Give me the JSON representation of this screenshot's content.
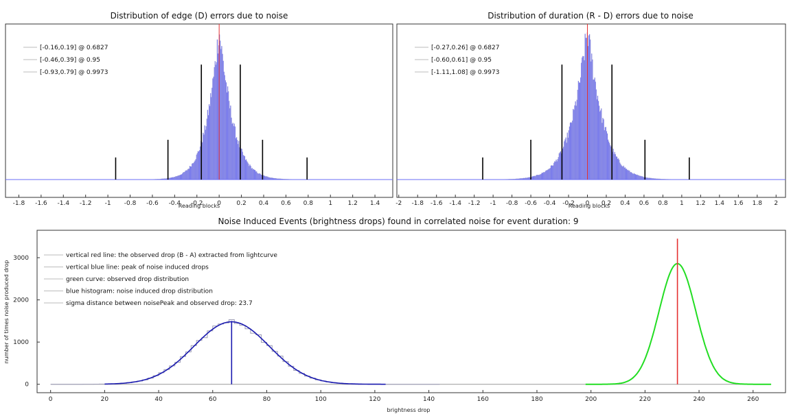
{
  "colors": {
    "hist_fill": "#6a6cf5",
    "hist_edge": "#b8b8c8",
    "red_line": "#e53030",
    "black_line": "#000000",
    "green_curve": "#22dd22",
    "blue_curve": "#1a1ab0",
    "legend_line": "#bbbbbb",
    "frame": "#333333"
  },
  "chart_data": [
    {
      "type": "bar",
      "title": "Distribution of edge (D) errors due to noise",
      "xlabel": "Reading blocks",
      "ylabel": "",
      "xlim": [
        -1.92,
        1.56
      ],
      "x_ticks": [
        -1.8,
        -1.6,
        -1.4,
        -1.2,
        -1,
        -0.8,
        -0.6,
        -0.4,
        -0.2,
        0,
        0.2,
        0.4,
        0.6,
        0.8,
        1,
        1.2,
        1.4
      ],
      "x_tick_labels": [
        "-1.8",
        "-1.6",
        "-1.4",
        "-1.2",
        "-1",
        "-0.8",
        "-0.6",
        "-0.4",
        "-0.2",
        "0",
        "0.2",
        "0.4",
        "0.6",
        "0.8",
        "1",
        "1.2",
        "1.4"
      ],
      "distribution": {
        "center": 0.0,
        "scale_left": 0.115,
        "scale_right": 0.125,
        "shape": "laplace-like",
        "support": [
          -1.3,
          1.5
        ]
      },
      "red_line_x": 0.0,
      "interval_markers": [
        {
          "low": -0.16,
          "high": 0.19,
          "height_frac": 0.78
        },
        {
          "low": -0.46,
          "high": 0.39,
          "height_frac": 0.27
        },
        {
          "low": -0.93,
          "high": 0.79,
          "height_frac": 0.15
        }
      ],
      "legend": {
        "placement": "top-left",
        "entries": [
          "[-0.16,0.19] @ 0.6827",
          "[-0.46,0.39] @ 0.95",
          "[-0.93,0.79] @ 0.9973"
        ]
      },
      "grid": false
    },
    {
      "type": "bar",
      "title": "Distribution of duration (R - D) errors due to noise",
      "xlabel": "Reading blocks",
      "ylabel": "",
      "xlim": [
        -2.02,
        2.1
      ],
      "x_ticks": [
        -2,
        -1.8,
        -1.6,
        -1.4,
        -1.2,
        -1,
        -0.8,
        -0.6,
        -0.4,
        -0.2,
        0,
        0.2,
        0.4,
        0.6,
        0.8,
        1,
        1.2,
        1.4,
        1.6,
        1.8,
        2
      ],
      "x_tick_labels": [
        "-2",
        "-1.8",
        "-1.6",
        "-1.4",
        "-1.2",
        "-1",
        "-0.8",
        "-0.6",
        "-0.4",
        "-0.2",
        "0",
        "0.2",
        "0.4",
        "0.6",
        "0.8",
        "1",
        "1.2",
        "1.4",
        "1.6",
        "1.8",
        "2"
      ],
      "distribution": {
        "center": 0.0,
        "scale_left": 0.17,
        "scale_right": 0.17,
        "shape": "laplace-like",
        "support": [
          -1.6,
          1.7
        ]
      },
      "red_line_x": 0.0,
      "interval_markers": [
        {
          "low": -0.27,
          "high": 0.26,
          "height_frac": 0.78
        },
        {
          "low": -0.6,
          "high": 0.61,
          "height_frac": 0.27
        },
        {
          "low": -1.11,
          "high": 1.08,
          "height_frac": 0.15
        }
      ],
      "legend": {
        "placement": "top-left",
        "entries": [
          "[-0.27,0.26] @ 0.6827",
          "[-0.60,0.61] @ 0.95",
          "[-1.11,1.08] @ 0.9973"
        ]
      },
      "grid": false
    },
    {
      "type": "line",
      "title": "Noise Induced Events (brightness drops) found in correlated noise for event duration: 9",
      "xlabel": "brightness drop",
      "ylabel": "number of times noise produced drop",
      "xlim": [
        -5,
        272
      ],
      "ylim": [
        -200,
        3650
      ],
      "x_ticks": [
        0,
        20,
        40,
        60,
        80,
        100,
        120,
        140,
        160,
        180,
        200,
        220,
        240,
        260
      ],
      "x_tick_labels": [
        "0",
        "20",
        "40",
        "60",
        "80",
        "100",
        "120",
        "140",
        "160",
        "180",
        "200",
        "220",
        "240",
        "260"
      ],
      "y_ticks": [
        0,
        1000,
        2000,
        3000
      ],
      "y_tick_labels": [
        "0",
        "1000",
        "2000",
        "3000"
      ],
      "series": [
        {
          "kind": "gaussian",
          "role": "blue histogram",
          "mean": 67,
          "sigma": 14,
          "peak": 1480,
          "x_range": [
            0,
            144
          ]
        },
        {
          "kind": "gaussian",
          "role": "blue fit",
          "mean": 67,
          "sigma": 14,
          "peak": 1480,
          "x_range": [
            20,
            124
          ]
        },
        {
          "kind": "gaussian",
          "role": "green curve",
          "mean": 232,
          "sigma": 6.8,
          "peak": 2860,
          "x_range": [
            198,
            267
          ]
        }
      ],
      "red_line": {
        "x": 232,
        "top": 3450
      },
      "blue_line": {
        "x": 67,
        "top": 1500
      },
      "legend": {
        "placement": "top-left",
        "entries": [
          "vertical red line: the observed drop (B - A) extracted from lightcurve",
          "vertical blue line: peak of noise induced drops",
          "green curve: observed drop distribution",
          "blue histogram: noise induced drop distribution",
          "sigma distance between noisePeak and observed drop: 23.7"
        ]
      },
      "grid": false
    }
  ]
}
